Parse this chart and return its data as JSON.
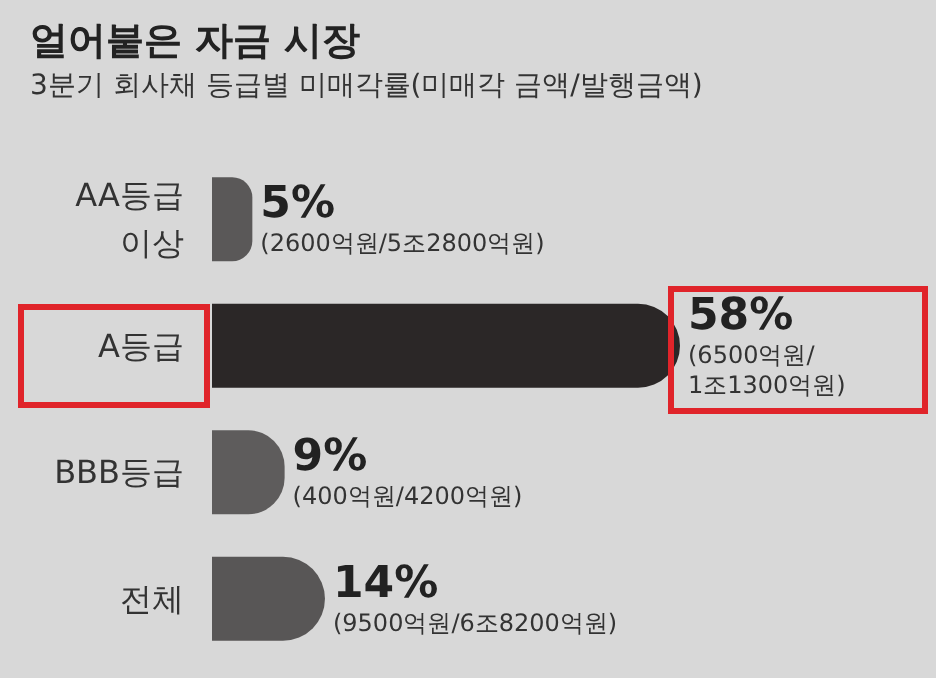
{
  "chart_data": {
    "type": "bar",
    "orientation": "horizontal",
    "title": "얼어붙은 자금 시장",
    "subtitle": "3분기 회사채 등급별 미매각률(미매각 금액/발행금액)",
    "categories": [
      "AA등급\n이상",
      "A등급",
      "BBB등급",
      "전체"
    ],
    "values": [
      5,
      58,
      9,
      14
    ],
    "colors": [
      "#5a5858",
      "#2b2727",
      "#5e5c5c",
      "#585656"
    ],
    "value_labels": [
      "5%\n(2600억원/5조2800억원)",
      "58%\n(6500억원/\n1조1300억원)",
      "9%\n(400억원/4200억원)",
      "14%\n(9500억원/6조8200억원)"
    ]
  }
}
